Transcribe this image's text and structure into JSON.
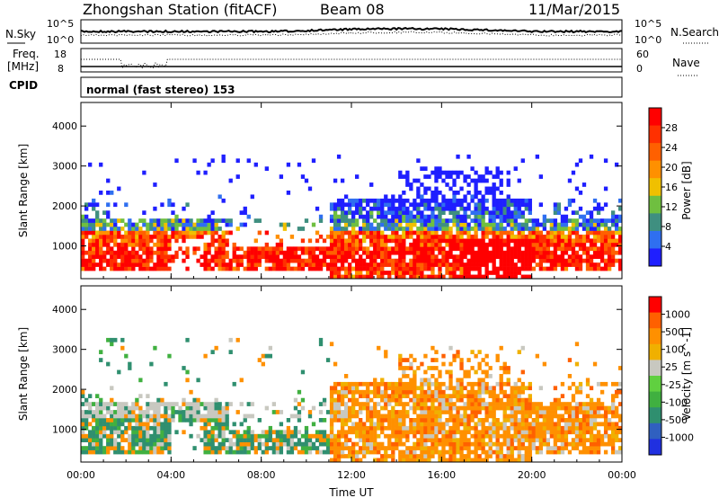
{
  "header": {
    "title": "Zhongshan Station (fitACF)",
    "beam": "Beam 08",
    "date": "11/Mar/2015"
  },
  "panels": {
    "nsky": {
      "label": "N.Sky",
      "right_label": "N.Search",
      "left_ticks": [
        "10^5",
        "10^0"
      ],
      "right_ticks": [
        "10^5",
        "10^0"
      ]
    },
    "freq": {
      "label_line1": "Freq.",
      "label_line2": "[MHz]",
      "right_label": "Nave",
      "left_ticks": [
        "18",
        "8"
      ],
      "right_ticks": [
        "60",
        "0"
      ]
    },
    "cpid": {
      "label": "CPID",
      "text": "normal (fast stereo) 153"
    }
  },
  "chart_data": [
    {
      "type": "heatmap",
      "ylabel": "Slant Range [km]",
      "xlabel": "",
      "xlim": [
        0,
        24
      ],
      "ylim": [
        180,
        4590
      ],
      "x_ticks": [
        "00:00",
        "04:00",
        "08:00",
        "12:00",
        "16:00",
        "20:00",
        "00:00"
      ],
      "y_ticks": [
        1000,
        2000,
        3000,
        4000
      ],
      "colorbar": {
        "label": "Power [dB]",
        "ticks": [
          4,
          8,
          12,
          16,
          20,
          24,
          28
        ],
        "range": [
          0,
          30
        ],
        "colors": [
          "#1f1fff",
          "#2f6ff0",
          "#3f8f80",
          "#6fbf40",
          "#f0c000",
          "#ff9000",
          "#ff6000",
          "#ff3000",
          "#ff0000"
        ]
      }
    },
    {
      "type": "heatmap",
      "ylabel": "Slant Range [km]",
      "xlabel": "Time UT",
      "xlim": [
        0,
        24
      ],
      "ylim": [
        180,
        4590
      ],
      "x_ticks": [
        "00:00",
        "04:00",
        "08:00",
        "12:00",
        "16:00",
        "20:00",
        "00:00"
      ],
      "y_ticks": [
        1000,
        2000,
        3000,
        4000
      ],
      "colorbar": {
        "label": "Velocity [m s^-1]",
        "ticks": [
          "1000",
          "500",
          "100",
          "25",
          "-25",
          "-100",
          "-500",
          "-1000"
        ],
        "colors": [
          "#2030e0",
          "#3060c0",
          "#2f8f6f",
          "#40b040",
          "#60d040",
          "#c8c8c0",
          "#f0b000",
          "#ff9000",
          "#ff6000",
          "#ff0000"
        ]
      }
    }
  ]
}
